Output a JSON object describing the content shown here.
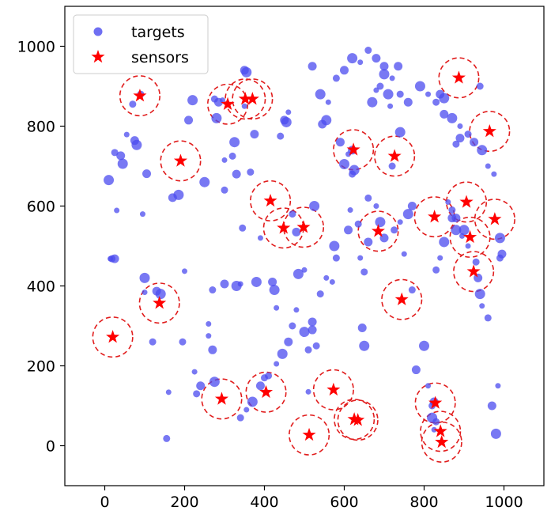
{
  "chart_data": {
    "type": "scatter",
    "xlim": [
      -100,
      1100
    ],
    "ylim": [
      -100,
      1100
    ],
    "xticks": [
      0,
      200,
      400,
      600,
      800,
      1000
    ],
    "yticks": [
      0,
      200,
      400,
      600,
      800,
      1000
    ],
    "grid": false,
    "legend": {
      "placement": "top-left",
      "entries": [
        {
          "key": "targets",
          "label": "targets"
        },
        {
          "key": "sensors",
          "label": "sensors"
        }
      ]
    },
    "colors": {
      "targets": "#4b4bef",
      "sensors": "#ff0000",
      "ranges": "#e11d1d"
    },
    "sensor_range_radius": 50,
    "targets": {
      "marker": "circle",
      "points": [
        [
          14,
          468
        ],
        [
          18,
          468
        ],
        [
          25,
          468
        ],
        [
          10,
          665
        ],
        [
          30,
          589
        ],
        [
          25,
          734
        ],
        [
          40,
          726
        ],
        [
          45,
          706
        ],
        [
          55,
          779
        ],
        [
          70,
          855
        ],
        [
          75,
          764
        ],
        [
          80,
          753
        ],
        [
          95,
          580
        ],
        [
          90,
          880
        ],
        [
          105,
          681
        ],
        [
          100,
          420
        ],
        [
          100,
          384
        ],
        [
          120,
          260
        ],
        [
          130,
          387
        ],
        [
          140,
          380
        ],
        [
          160,
          134
        ],
        [
          155,
          18
        ],
        [
          170,
          621
        ],
        [
          185,
          628
        ],
        [
          200,
          437
        ],
        [
          195,
          260
        ],
        [
          210,
          815
        ],
        [
          220,
          865
        ],
        [
          225,
          185
        ],
        [
          230,
          130
        ],
        [
          240,
          150
        ],
        [
          250,
          660
        ],
        [
          260,
          275
        ],
        [
          270,
          390
        ],
        [
          270,
          240
        ],
        [
          275,
          160
        ],
        [
          260,
          305
        ],
        [
          275,
          868
        ],
        [
          285,
          860
        ],
        [
          280,
          820
        ],
        [
          295,
          865
        ],
        [
          300,
          640
        ],
        [
          300,
          405
        ],
        [
          330,
          400
        ],
        [
          340,
          405
        ],
        [
          345,
          545
        ],
        [
          350,
          940
        ],
        [
          355,
          935
        ],
        [
          300,
          715
        ],
        [
          320,
          725
        ],
        [
          330,
          680
        ],
        [
          325,
          760
        ],
        [
          350,
          850
        ],
        [
          365,
          685
        ],
        [
          375,
          780
        ],
        [
          380,
          410
        ],
        [
          390,
          520
        ],
        [
          410,
          175
        ],
        [
          420,
          410
        ],
        [
          425,
          390
        ],
        [
          430,
          345
        ],
        [
          440,
          775
        ],
        [
          450,
          815
        ],
        [
          455,
          810
        ],
        [
          460,
          835
        ],
        [
          470,
          580
        ],
        [
          480,
          535
        ],
        [
          485,
          430
        ],
        [
          500,
          440
        ],
        [
          510,
          240
        ],
        [
          520,
          290
        ],
        [
          525,
          600
        ],
        [
          510,
          135
        ],
        [
          530,
          250
        ],
        [
          545,
          805
        ],
        [
          555,
          815
        ],
        [
          570,
          410
        ],
        [
          580,
          470
        ],
        [
          590,
          760
        ],
        [
          600,
          705
        ],
        [
          610,
          730
        ],
        [
          620,
          680
        ],
        [
          620,
          740
        ],
        [
          625,
          690
        ],
        [
          615,
          590
        ],
        [
          635,
          555
        ],
        [
          645,
          295
        ],
        [
          650,
          250
        ],
        [
          640,
          470
        ],
        [
          650,
          435
        ],
        [
          660,
          510
        ],
        [
          670,
          860
        ],
        [
          680,
          890
        ],
        [
          690,
          900
        ],
        [
          700,
          950
        ],
        [
          710,
          880
        ],
        [
          715,
          850
        ],
        [
          720,
          700
        ],
        [
          735,
          950
        ],
        [
          740,
          785
        ],
        [
          750,
          480
        ],
        [
          770,
          390
        ],
        [
          780,
          190
        ],
        [
          800,
          250
        ],
        [
          810,
          150
        ],
        [
          820,
          100
        ],
        [
          825,
          110
        ],
        [
          820,
          70
        ],
        [
          825,
          40
        ],
        [
          830,
          60
        ],
        [
          840,
          880
        ],
        [
          850,
          870
        ],
        [
          860,
          610
        ],
        [
          870,
          590
        ],
        [
          880,
          570
        ],
        [
          880,
          540
        ],
        [
          895,
          525
        ],
        [
          880,
          755
        ],
        [
          890,
          770
        ],
        [
          900,
          540
        ],
        [
          910,
          500
        ],
        [
          930,
          460
        ],
        [
          935,
          420
        ],
        [
          940,
          380
        ],
        [
          945,
          350
        ],
        [
          960,
          320
        ],
        [
          970,
          100
        ],
        [
          980,
          30
        ],
        [
          985,
          150
        ],
        [
          990,
          470
        ],
        [
          995,
          480
        ],
        [
          990,
          520
        ],
        [
          975,
          680
        ],
        [
          940,
          900
        ],
        [
          870,
          570
        ],
        [
          850,
          510
        ],
        [
          840,
          470
        ],
        [
          830,
          440
        ],
        [
          770,
          600
        ],
        [
          760,
          580
        ],
        [
          740,
          560
        ],
        [
          725,
          540
        ],
        [
          700,
          520
        ],
        [
          690,
          560
        ],
        [
          680,
          600
        ],
        [
          660,
          620
        ],
        [
          610,
          540
        ],
        [
          575,
          500
        ],
        [
          555,
          420
        ],
        [
          540,
          380
        ],
        [
          520,
          310
        ],
        [
          500,
          285
        ],
        [
          480,
          340
        ],
        [
          470,
          300
        ],
        [
          460,
          260
        ],
        [
          445,
          230
        ],
        [
          430,
          205
        ],
        [
          400,
          170
        ],
        [
          390,
          150
        ],
        [
          370,
          110
        ],
        [
          355,
          90
        ],
        [
          340,
          70
        ],
        [
          520,
          950
        ],
        [
          540,
          880
        ],
        [
          560,
          860
        ],
        [
          580,
          920
        ],
        [
          600,
          940
        ],
        [
          620,
          970
        ],
        [
          640,
          960
        ],
        [
          660,
          990
        ],
        [
          680,
          970
        ],
        [
          700,
          930
        ],
        [
          720,
          920
        ],
        [
          740,
          880
        ],
        [
          760,
          860
        ],
        [
          790,
          900
        ],
        [
          810,
          880
        ],
        [
          830,
          860
        ],
        [
          850,
          830
        ],
        [
          870,
          820
        ],
        [
          890,
          800
        ],
        [
          910,
          780
        ],
        [
          925,
          760
        ],
        [
          945,
          740
        ],
        [
          960,
          700
        ]
      ]
    },
    "sensors": {
      "marker": "star",
      "points": [
        [
          88,
          876
        ],
        [
          190,
          713
        ],
        [
          308,
          855
        ],
        [
          352,
          868
        ],
        [
          370,
          868
        ],
        [
          415,
          613
        ],
        [
          448,
          545
        ],
        [
          498,
          547
        ],
        [
          623,
          741
        ],
        [
          726,
          725
        ],
        [
          826,
          573
        ],
        [
          906,
          610
        ],
        [
          977,
          567
        ],
        [
          915,
          522
        ],
        [
          685,
          537
        ],
        [
          744,
          366
        ],
        [
          924,
          436
        ],
        [
          137,
          357
        ],
        [
          20,
          272
        ],
        [
          293,
          117
        ],
        [
          404,
          134
        ],
        [
          573,
          140
        ],
        [
          512,
          27
        ],
        [
          625,
          66
        ],
        [
          634,
          64
        ],
        [
          828,
          107
        ],
        [
          841,
          36
        ],
        [
          844,
          9
        ],
        [
          887,
          921
        ],
        [
          964,
          787
        ]
      ]
    }
  }
}
